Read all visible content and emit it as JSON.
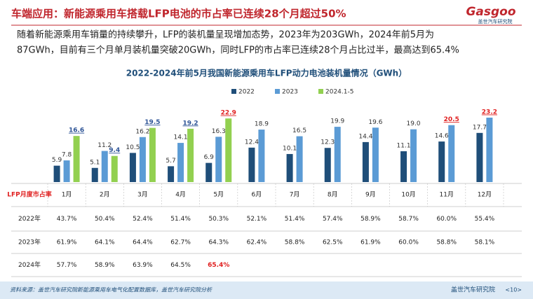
{
  "header": {
    "title": "车端应用：新能源乘用车搭载LFP电池的市占率已连续28个月超过50%",
    "logo": "Gasgoo",
    "logo_sub": "盖世汽车研究院"
  },
  "paragraph": [
    "随着新能源乘用车销量的持续攀升，LFP的装机量呈现增加态势，2023年为203GWh，2024年前5月为",
    "87GWh，目前有三个月单月装机量突破20GWh，同时LFP的市占率已连续28个月占比过半，最高达到65.4%"
  ],
  "chart_data": {
    "type": "bar",
    "title": "2022-2024年前5月我国新能源乘用车LFP动力电池装机量情况（GWh）",
    "categories": [
      "1月",
      "2月",
      "3月",
      "4月",
      "5月",
      "6月",
      "7月",
      "8月",
      "9月",
      "10月",
      "11月",
      "12月"
    ],
    "series": [
      {
        "name": "2022",
        "color": "#1f4e79",
        "values": [
          5.9,
          5.1,
          10.5,
          5.7,
          6.9,
          12.4,
          10.1,
          12.3,
          14.4,
          11.1,
          14.6,
          17.7
        ]
      },
      {
        "name": "2023",
        "color": "#5b9bd5",
        "values": [
          7.8,
          11.2,
          16.2,
          14.1,
          16.3,
          18.9,
          16.5,
          19.9,
          19.6,
          19,
          20.5,
          23.2
        ],
        "value_labels": [
          "7.8",
          "11.2",
          "16.2",
          "14.1",
          "16.3",
          "18.9",
          "16.5",
          "19.9",
          "19.6",
          "19.0",
          "20.5",
          "23.2"
        ]
      },
      {
        "name": "2024.1-5",
        "color": "#92d050",
        "values": [
          16.6,
          9.4,
          19.5,
          19.2,
          22.9,
          null,
          null,
          null,
          null,
          null,
          null,
          null
        ]
      }
    ],
    "legend": "top"
  },
  "table": {
    "header": "LFP月度市占率",
    "rows": [
      {
        "label": "2022年",
        "cells": [
          "43.7%",
          "50.4%",
          "52.4%",
          "51.4%",
          "50.3%",
          "52.1%",
          "51.4%",
          "57.4%",
          "58.9%",
          "58.7%",
          "60.0%",
          "55.4%"
        ]
      },
      {
        "label": "2023年",
        "cells": [
          "61.9%",
          "64.1%",
          "64.4%",
          "62.7%",
          "64.3%",
          "62.4%",
          "58.8%",
          "62.5%",
          "61.9%",
          "60.0%",
          "58.8%",
          "58.1%"
        ]
      },
      {
        "label": "2024年",
        "cells": [
          "57.7%",
          "58.9%",
          "63.9%",
          "64.5%",
          "65.4%"
        ]
      }
    ]
  },
  "footer": {
    "source": "资料来源：盖世汽车研究院新能源乘用车电气化配置数据库，盖世汽车研究院分析",
    "brand": "盖世汽车研究院",
    "page": "<10>"
  }
}
